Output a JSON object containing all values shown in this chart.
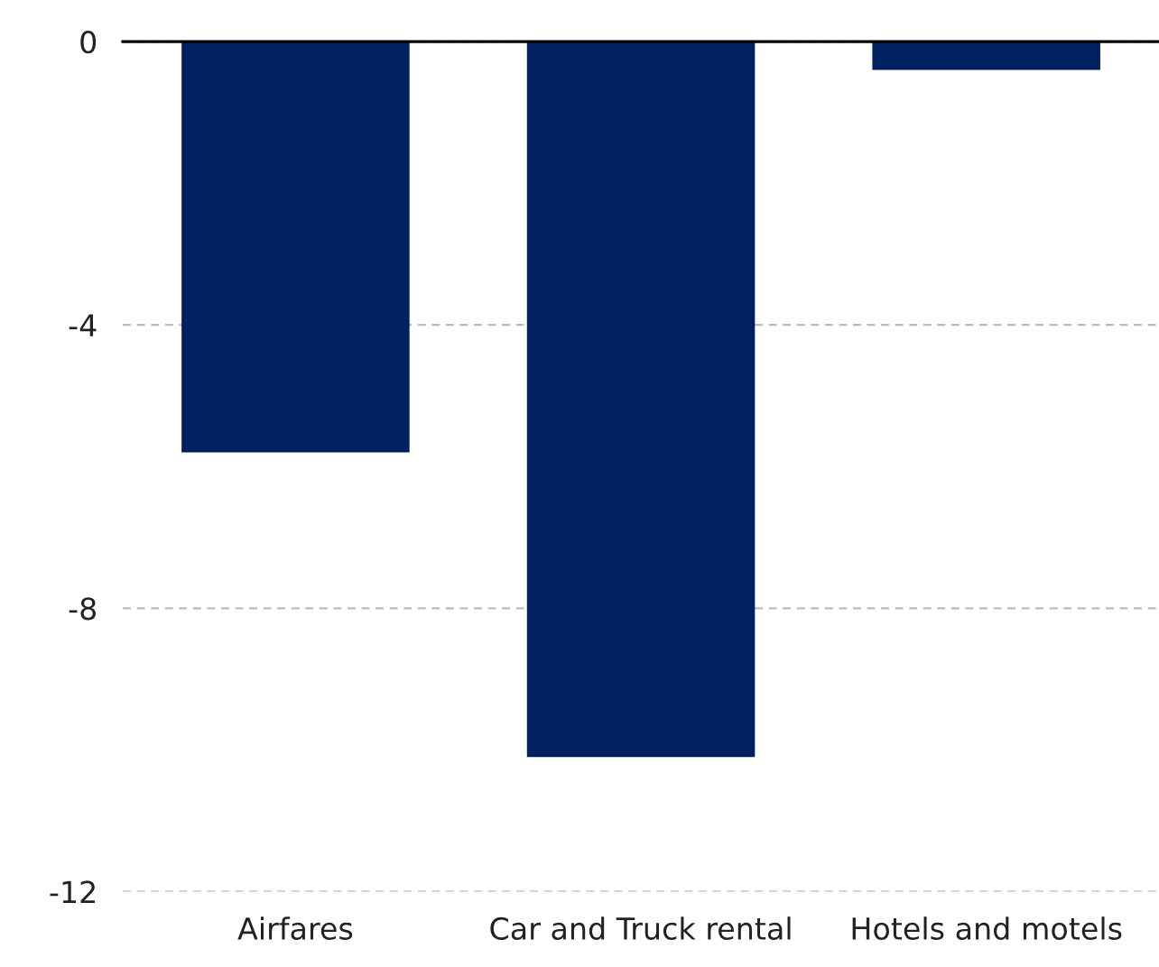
{
  "chart_data": {
    "type": "bar",
    "categories": [
      "Airfares",
      "Car and Truck rental",
      "Hotels and motels"
    ],
    "values": [
      -5.8,
      -10.1,
      -0.4
    ],
    "color": "#002060",
    "ylim": [
      -12,
      0
    ],
    "yticks": [
      -12,
      -8,
      -4,
      0
    ],
    "grid": "y"
  }
}
